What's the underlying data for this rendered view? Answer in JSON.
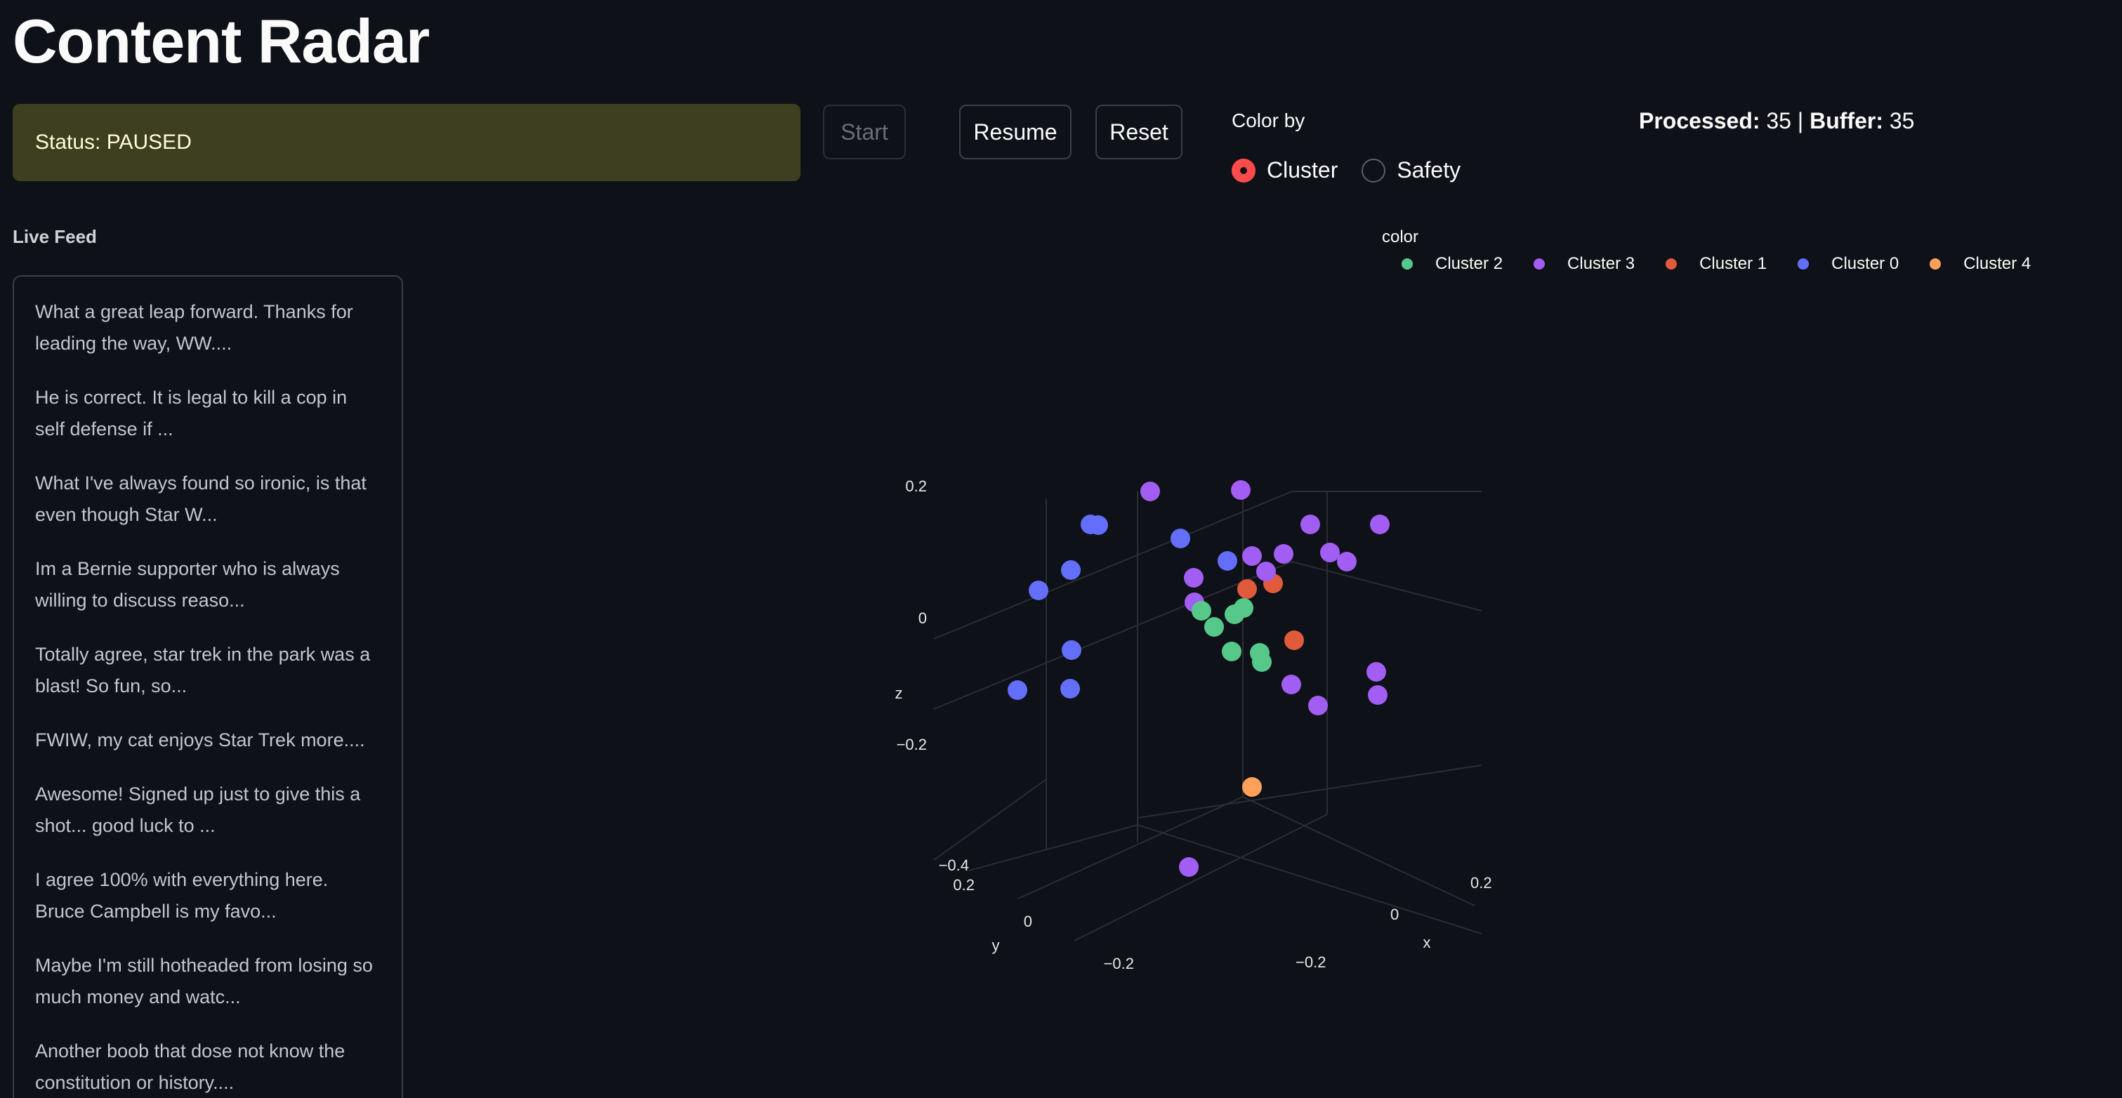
{
  "app": {
    "title": "Content Radar"
  },
  "status": {
    "text": "Status: PAUSED"
  },
  "controls": {
    "start": "Start",
    "resume": "Resume",
    "reset": "Reset"
  },
  "color_by": {
    "label": "Color by",
    "options": [
      "Cluster",
      "Safety"
    ],
    "selected": "Cluster"
  },
  "stats": {
    "processed_label": "Processed:",
    "processed": "35",
    "sep": "|",
    "buffer_label": "Buffer:",
    "buffer": "35"
  },
  "feed": {
    "label": "Live Feed",
    "items": [
      "What a great leap forward. Thanks for leading the way, WW....",
      "He is correct. It is legal to kill a cop in self defense if ...",
      "What I've always found so ironic, is that even though Star W...",
      "Im a Bernie supporter who is always willing to discuss reaso...",
      "Totally agree, star trek in the park was a blast! So fun, so...",
      "FWIW, my cat enjoys Star Trek more....",
      "Awesome! Signed up just to give this a shot... good luck to ...",
      "I agree 100% with everything here. Bruce Campbell is my favo...",
      "Maybe I'm still hotheaded from losing so much money and watc...",
      "Another boob that dose not know the constitution or history...."
    ]
  },
  "chart_data": {
    "type": "scatter",
    "dimensions": 3,
    "legend_title": "color",
    "legend_placement": "top-right",
    "series": [
      {
        "name": "Cluster 2",
        "color": "#56c98a"
      },
      {
        "name": "Cluster 3",
        "color": "#a25df2"
      },
      {
        "name": "Cluster 1",
        "color": "#e05a3c"
      },
      {
        "name": "Cluster 0",
        "color": "#636efa"
      },
      {
        "name": "Cluster 4",
        "color": "#ffa15a"
      }
    ],
    "axes": {
      "x": {
        "label": "x",
        "ticks": [
          "0.2",
          "0",
          "−0.2"
        ]
      },
      "y": {
        "label": "y",
        "ticks": [
          "0.2",
          "0",
          "−0.2"
        ]
      },
      "z": {
        "label": "z",
        "ticks": [
          "0.2",
          "0",
          "−0.2",
          "−0.4"
        ]
      }
    }
  }
}
